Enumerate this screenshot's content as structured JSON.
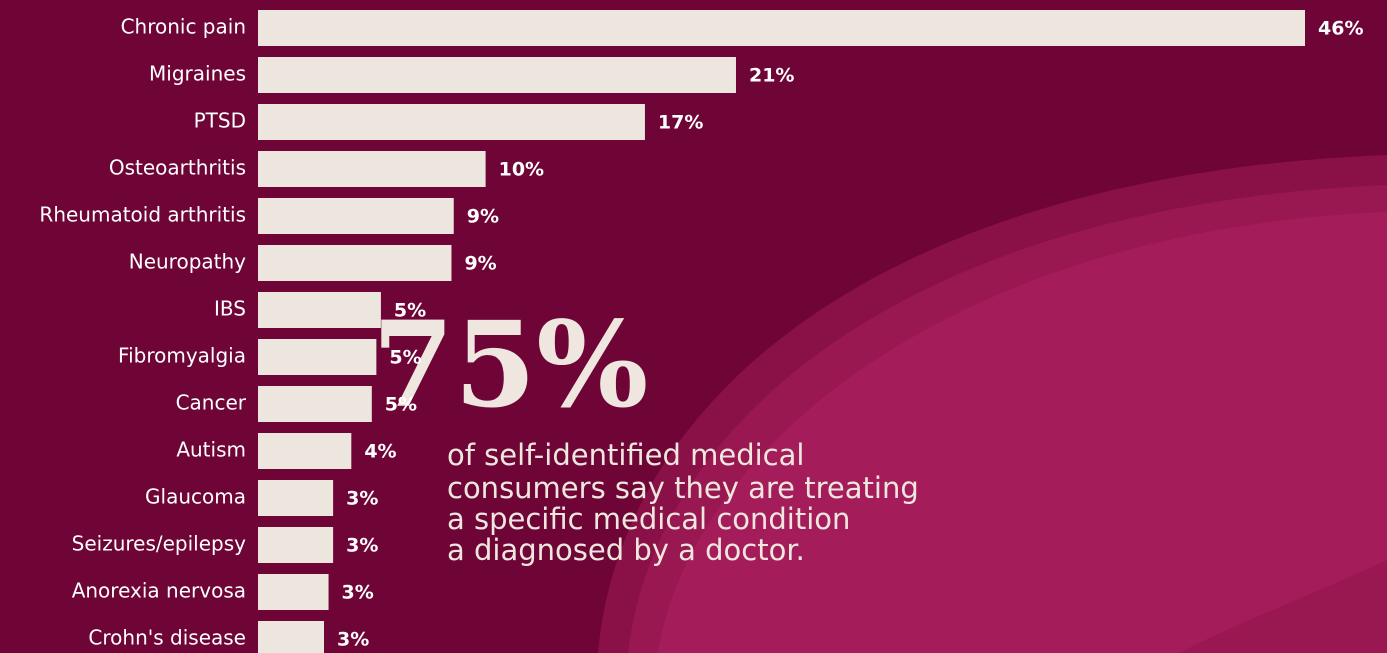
{
  "chart_data": {
    "type": "hbar",
    "categories": [
      "Chronic pain",
      "Migraines",
      "PTSD",
      "Osteoarthritis",
      "Rheumatoid arthritis",
      "Neuropathy",
      "IBS",
      "Fibromyalgia",
      "Cancer",
      "Autism",
      "Glaucoma",
      "Seizures/epilepsy",
      "Anorexia nervosa",
      "Crohn's disease"
    ],
    "values": [
      46,
      21,
      17,
      10,
      8.6,
      8.5,
      5.4,
      5.2,
      5.0,
      4.1,
      3.3,
      3.3,
      3.1,
      2.9
    ],
    "value_labels": [
      "46%",
      "21%",
      "17%",
      "10%",
      "9%",
      "9%",
      "5%",
      "5%",
      "5%",
      "4%",
      "3%",
      "3%",
      "3%",
      "3%"
    ],
    "color": "#ede6df"
  },
  "callout": {
    "headline": "75%",
    "lines": [
      "of self-identified medical",
      "consumers say they are treating",
      "a specific medical condition",
      "a diagnosed by a doctor."
    ]
  }
}
